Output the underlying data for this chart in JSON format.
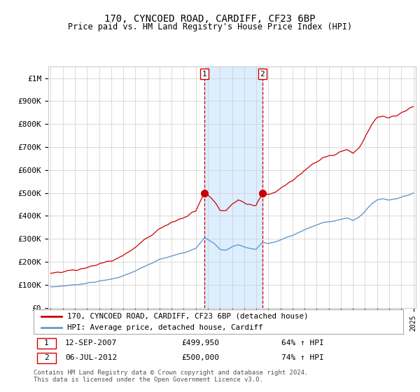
{
  "title": "170, CYNCOED ROAD, CARDIFF, CF23 6BP",
  "subtitle": "Price paid vs. HM Land Registry's House Price Index (HPI)",
  "ylim": [
    0,
    1050000
  ],
  "yticks": [
    0,
    100000,
    200000,
    300000,
    400000,
    500000,
    600000,
    700000,
    800000,
    900000,
    1000000
  ],
  "ytick_labels": [
    "£0",
    "£100K",
    "£200K",
    "£300K",
    "£400K",
    "£500K",
    "£600K",
    "£700K",
    "£800K",
    "£900K",
    "£1M"
  ],
  "hpi_color": "#6699cc",
  "price_color": "#cc0000",
  "sale1_x": 2007.71,
  "sale1_price": 499950,
  "sale2_x": 2012.51,
  "sale2_price": 500000,
  "legend_line1": "170, CYNCOED ROAD, CARDIFF, CF23 6BP (detached house)",
  "legend_line2": "HPI: Average price, detached house, Cardiff",
  "background_color": "#ffffff",
  "grid_color": "#cccccc",
  "highlight_color": "#ddeeff",
  "footer": "Contains HM Land Registry data © Crown copyright and database right 2024.\nThis data is licensed under the Open Government Licence v3.0."
}
